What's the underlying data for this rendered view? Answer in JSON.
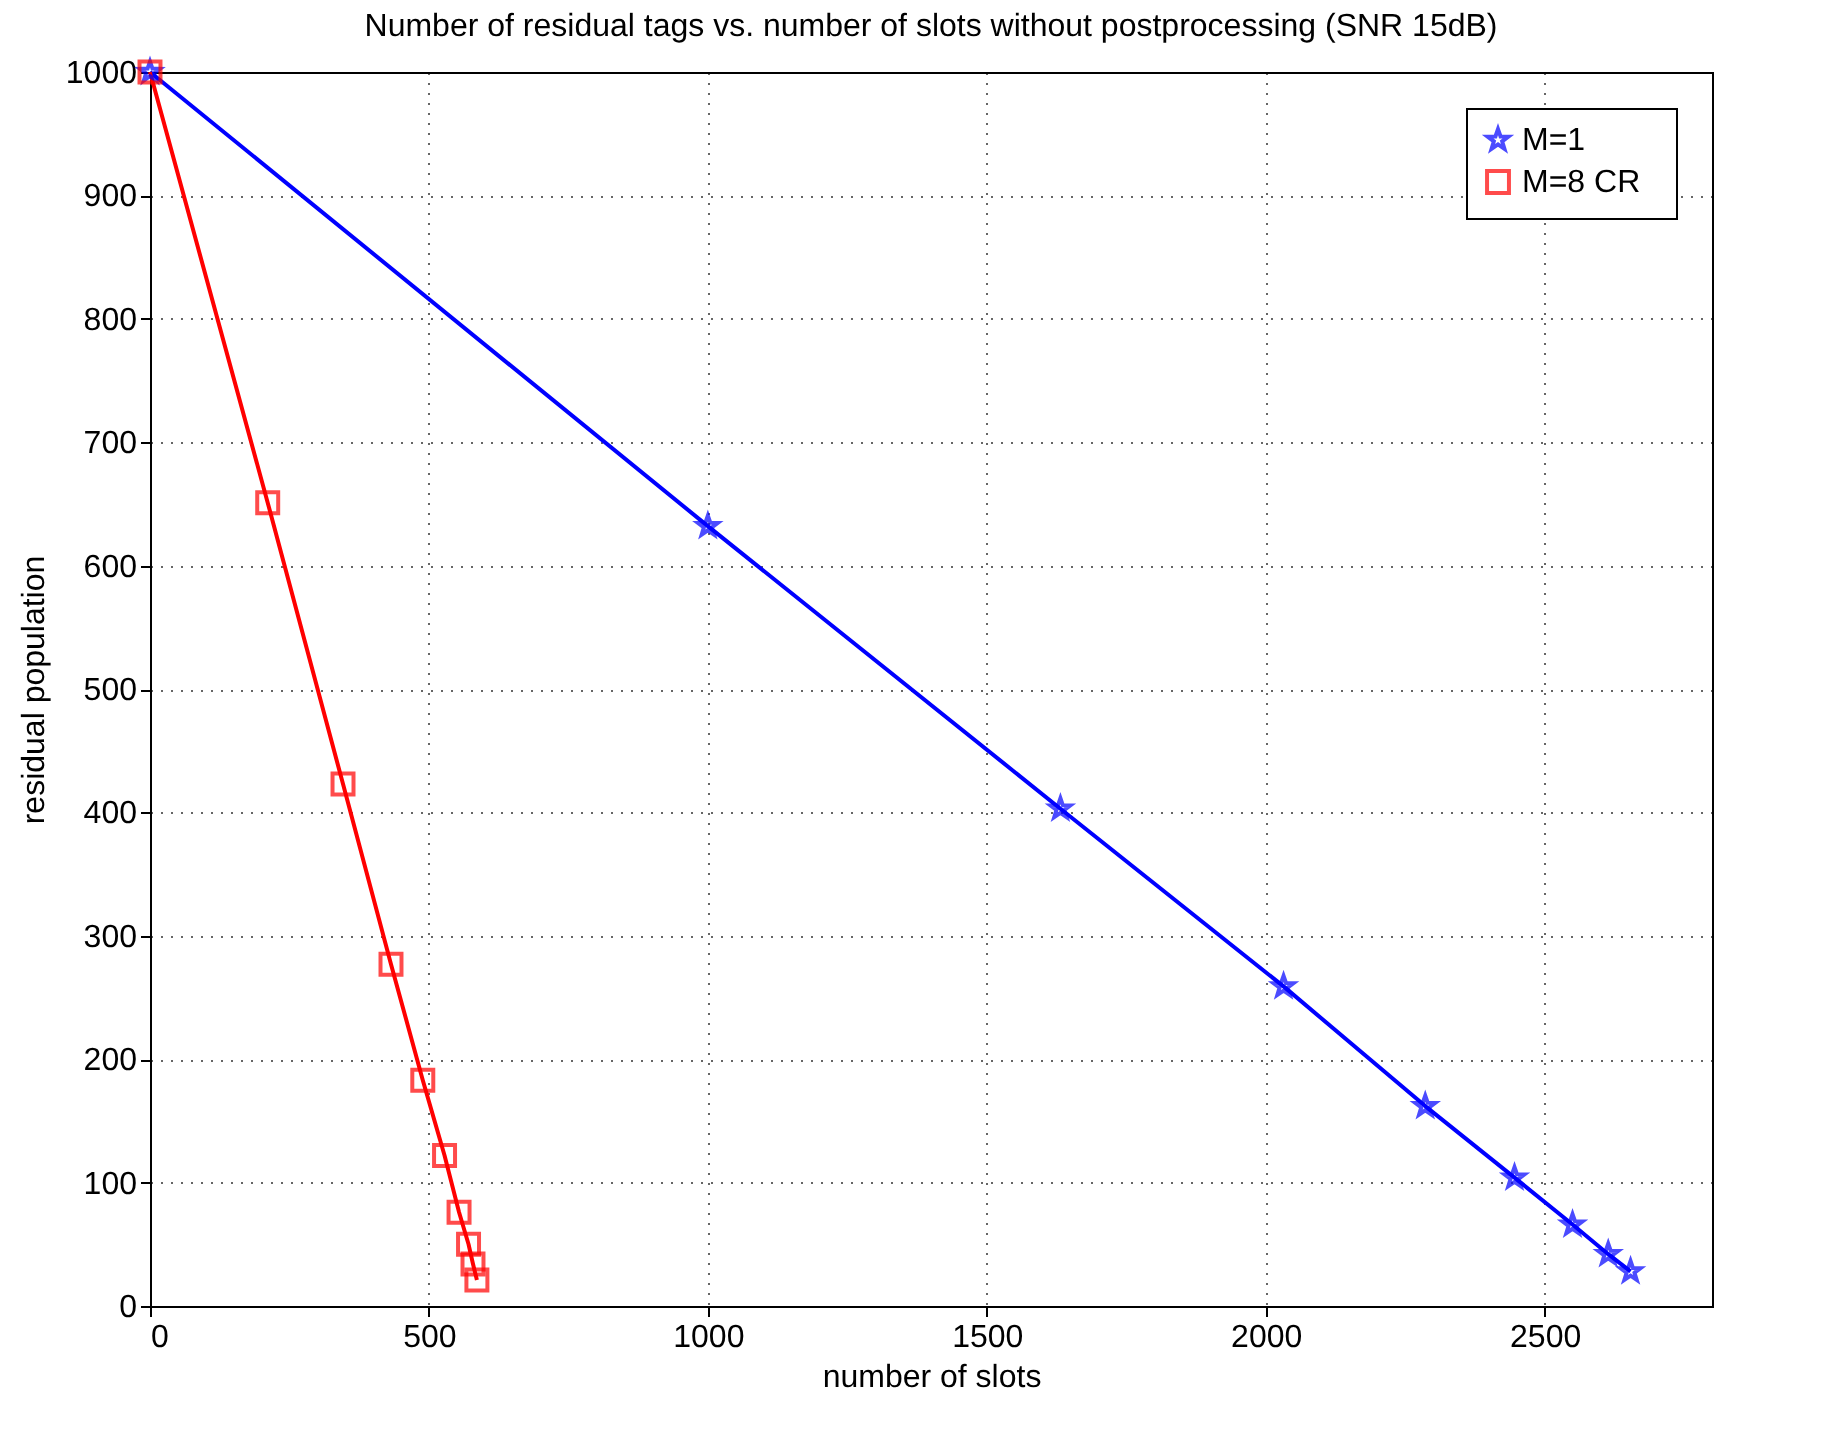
{
  "chart_data": {
    "type": "line",
    "title": "Number of residual tags vs. number of slots without postprocessing (SNR 15dB)",
    "xlabel": "number of slots",
    "ylabel": "residual population",
    "xlim": [
      0,
      2800
    ],
    "xticks": [
      0,
      500,
      1000,
      1500,
      2000,
      2500
    ],
    "ylim": [
      0,
      1000
    ],
    "yticks": [
      0,
      100,
      200,
      300,
      400,
      500,
      600,
      700,
      800,
      900,
      1000
    ],
    "grid": true,
    "legend": "top right",
    "series": [
      {
        "name": "M=1",
        "color": "#0000ff",
        "marker": "star",
        "x": [
          0,
          1000,
          1632,
          2032,
          2286,
          2446,
          2550,
          2614,
          2654
        ],
        "values": [
          1000,
          632,
          403,
          259,
          162,
          104,
          66,
          42,
          28
        ]
      },
      {
        "name": "M=8   CR",
        "color": "#ff0000",
        "marker": "square",
        "x": [
          0,
          211,
          346,
          432,
          489,
          528,
          554,
          571,
          579,
          586
        ],
        "values": [
          1000,
          651,
          423,
          277,
          183,
          122,
          76,
          50,
          34,
          21
        ]
      }
    ]
  }
}
